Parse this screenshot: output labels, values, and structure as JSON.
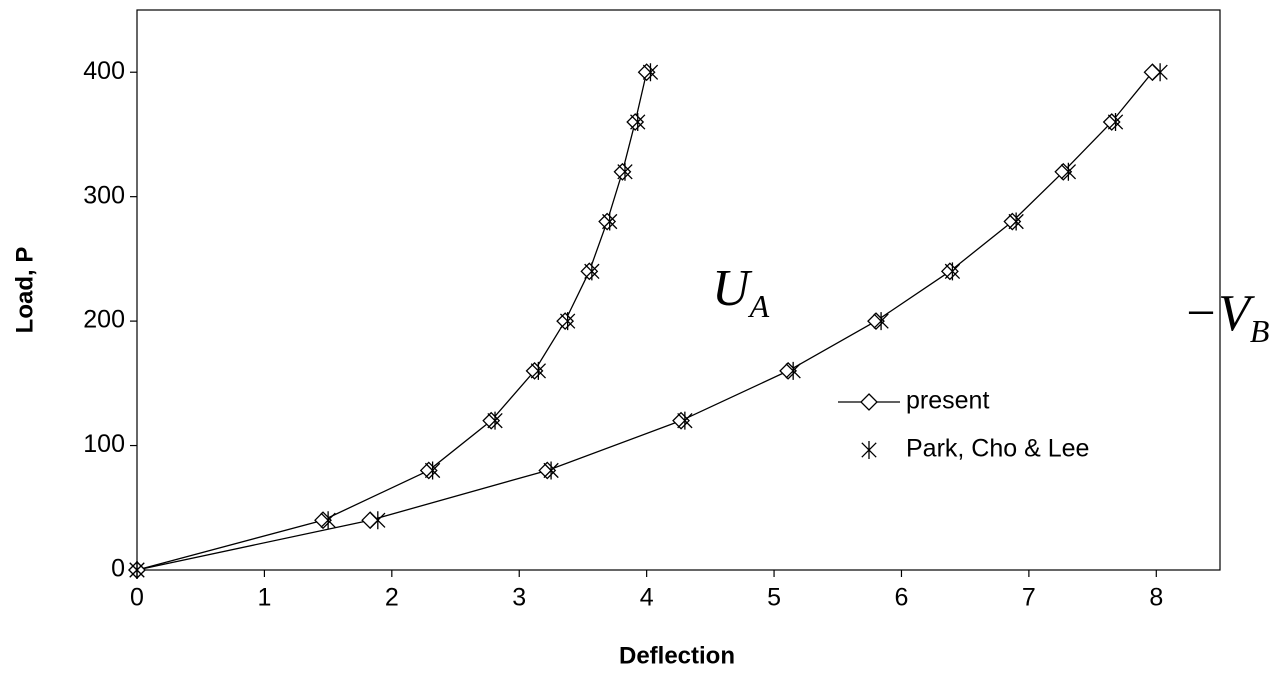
{
  "chart_data": {
    "type": "line",
    "xlabel": "Deflection",
    "ylabel": "Load, P",
    "xlim": [
      0,
      8.5
    ],
    "ylim": [
      0,
      450
    ],
    "xticks": [
      0,
      1,
      2,
      3,
      4,
      5,
      6,
      7,
      8
    ],
    "yticks": [
      0,
      100,
      200,
      300,
      400
    ],
    "legend": "right",
    "grid": false,
    "series": [
      {
        "name": "present",
        "marker": "diamond",
        "line": true,
        "color": "#000000",
        "data": [
          {
            "x": [
              0,
              1.46,
              2.29,
              2.78,
              3.12,
              3.36,
              3.55,
              3.69,
              3.81,
              3.91,
              4.0
            ],
            "values": [
              0,
              40,
              80,
              120,
              160,
              200,
              240,
              280,
              320,
              360,
              400
            ]
          },
          {
            "x": [
              0,
              1.83,
              3.22,
              4.27,
              5.11,
              5.8,
              6.38,
              6.87,
              7.27,
              7.65,
              7.97
            ],
            "values": [
              0,
              40,
              80,
              120,
              160,
              200,
              240,
              280,
              320,
              360,
              400
            ]
          }
        ]
      },
      {
        "name": "Park, Cho & Lee",
        "marker": "asterisk",
        "line": false,
        "color": "#000000",
        "data": [
          {
            "x": [
              0,
              1.5,
              2.32,
              2.81,
              3.15,
              3.38,
              3.57,
              3.71,
              3.83,
              3.93,
              4.03
            ],
            "values": [
              0,
              40,
              80,
              120,
              160,
              200,
              240,
              280,
              320,
              360,
              400
            ]
          },
          {
            "x": [
              0,
              1.89,
              3.25,
              4.3,
              5.15,
              5.84,
              6.4,
              6.9,
              7.31,
              7.68,
              8.03
            ],
            "values": [
              0,
              40,
              80,
              120,
              160,
              200,
              240,
              280,
              320,
              360,
              400
            ]
          }
        ]
      }
    ],
    "annotations": [
      {
        "text": "U",
        "sub": "A"
      },
      {
        "text": "−V",
        "sub": "B"
      }
    ]
  }
}
